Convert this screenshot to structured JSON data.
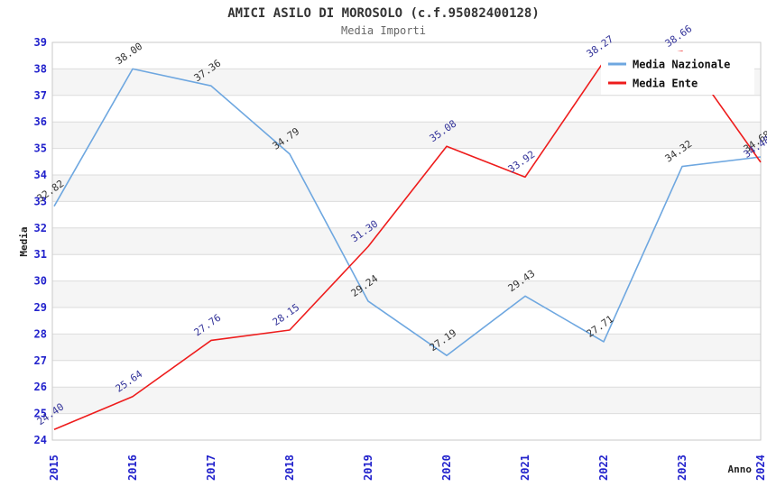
{
  "chart_data": {
    "type": "line",
    "title": "AMICI ASILO DI MOROSOLO (c.f.95082400128)",
    "subtitle": "Media Importi",
    "xlabel": "Anno",
    "ylabel": "Media",
    "x": [
      2015,
      2016,
      2017,
      2018,
      2019,
      2020,
      2021,
      2022,
      2023,
      2024
    ],
    "series": [
      {
        "name": "Media Nazionale",
        "color": "#6ea7e0",
        "label_color": "#333333",
        "values": [
          32.82,
          38.0,
          37.36,
          34.79,
          29.24,
          27.19,
          29.43,
          27.71,
          34.32,
          34.68
        ]
      },
      {
        "name": "Media Ente",
        "color": "#ee1c1c",
        "label_color": "#333399",
        "values": [
          24.4,
          25.64,
          27.76,
          28.15,
          31.3,
          35.08,
          33.92,
          38.27,
          38.66,
          34.48
        ]
      }
    ],
    "ylim": [
      24,
      39
    ],
    "ytick_step": 1,
    "grid": "horizontal",
    "legend_position": "top-right",
    "colors": {
      "tick_label": "#2222cc",
      "gridline": "#dcdcdc",
      "frame": "#c9c9c9",
      "band_alt": "#f5f5f5",
      "band_main": "#ffffff",
      "legend_bg": "#ffffff"
    }
  }
}
